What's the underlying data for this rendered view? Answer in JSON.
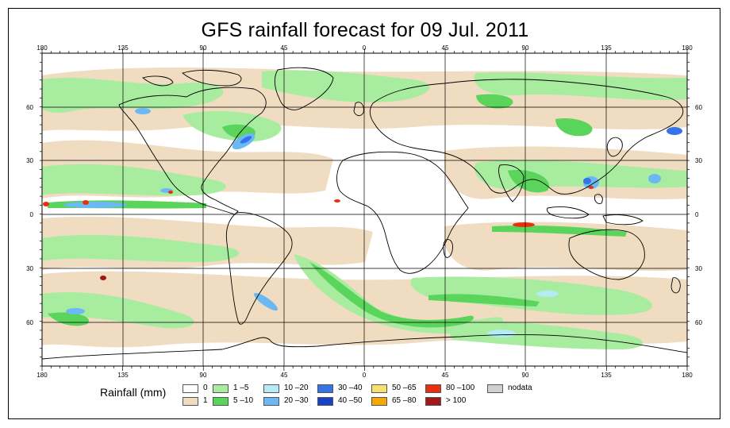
{
  "title": "GFS rainfall forecast for 09 Jul. 2011",
  "longitude_labels": [
    "180",
    "135",
    "90",
    "45",
    "0",
    "45",
    "90",
    "135",
    "180"
  ],
  "latitude_labels": [
    "60",
    "30",
    "0",
    "30",
    "60"
  ],
  "legend": {
    "title": "Rainfall (mm)",
    "items": [
      {
        "label": "0",
        "color": "#ffffff"
      },
      {
        "label": "1",
        "color": "#f0dcc0"
      },
      {
        "label": "1 –5",
        "color": "#a8eca0"
      },
      {
        "label": "5 –10",
        "color": "#5ad45a"
      },
      {
        "label": "10 –20",
        "color": "#b4ecf6"
      },
      {
        "label": "20 –30",
        "color": "#6cb8f4"
      },
      {
        "label": "30 –40",
        "color": "#3474e8"
      },
      {
        "label": "40 –50",
        "color": "#1840c8"
      },
      {
        "label": "50 –65",
        "color": "#f8e070"
      },
      {
        "label": "65 –80",
        "color": "#f4a800"
      },
      {
        "label": "80 –100",
        "color": "#e83010"
      },
      {
        "label": "> 100",
        "color": "#a01818"
      },
      {
        "label": "nodata",
        "color": "#d0d0d0"
      }
    ]
  }
}
